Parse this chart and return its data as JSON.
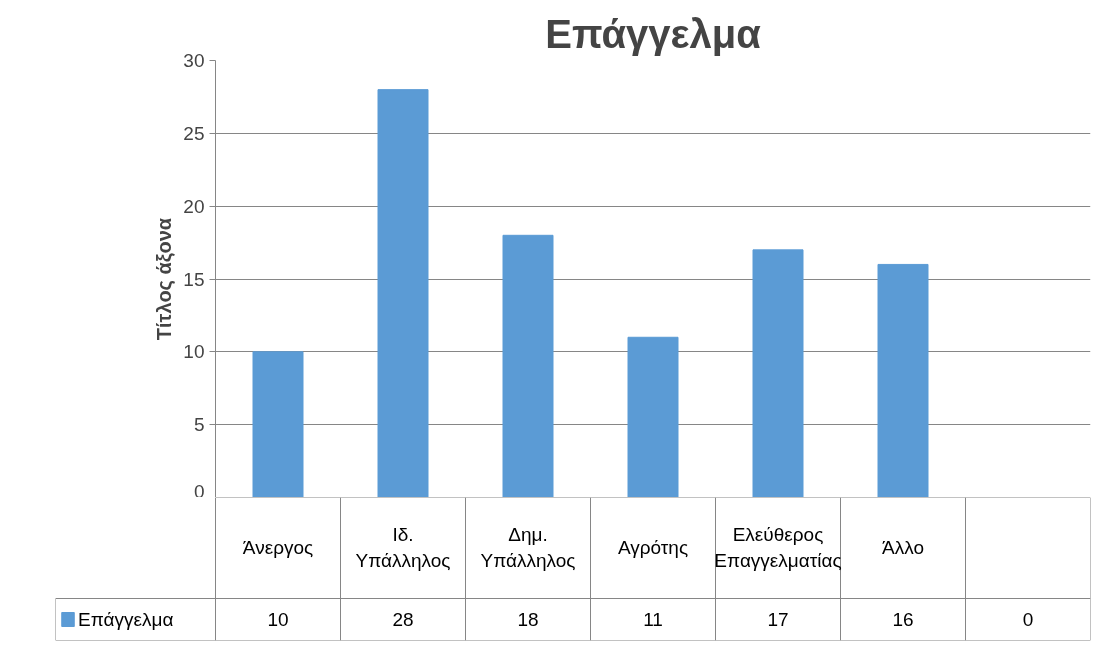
{
  "chart_data": {
    "type": "bar",
    "title": "Επάγγελμα",
    "ylabel": "Τίτλος άξονα",
    "categories": [
      "Άνεργος",
      "Ιδ. Υπάλληλος",
      "Δημ. Υπάλληλος",
      "Αγρότης",
      "Ελεύθερος Επαγγελματίας",
      "Άλλο",
      null
    ],
    "series": [
      {
        "name": "Επάγγελμα",
        "color": "#5b9bd5",
        "values": [
          10,
          28,
          18,
          11,
          17,
          16,
          0
        ]
      }
    ],
    "ylim": [
      0,
      30
    ],
    "yticks": [
      0,
      5,
      10,
      15,
      20,
      25,
      30
    ],
    "grid": "y",
    "legend": "bottom",
    "data_labels": true
  }
}
